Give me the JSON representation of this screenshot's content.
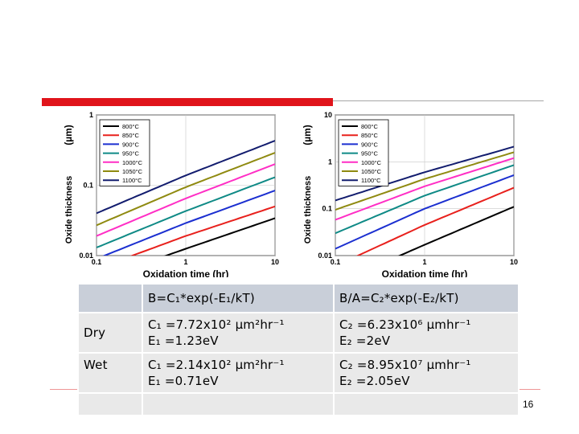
{
  "colors": {
    "accent_red": "#e0141b",
    "header_cell": "#c9cfd9",
    "body_cell": "#e9e9e9"
  },
  "page_number": "16",
  "chart_data": [
    {
      "type": "line",
      "ylabel": "(µm)",
      "ylabel_letters": "Oxide thickness",
      "xlabel": "Oxidation time (hr)",
      "xscale": "log",
      "yscale": "log",
      "xlim": [
        0.1,
        10
      ],
      "ylim": [
        0.01,
        1
      ],
      "xticks": [
        "0.1",
        "1",
        "10"
      ],
      "yticks": [
        "0.01",
        "0.1",
        "1"
      ],
      "legend_position": "top-left",
      "series": [
        {
          "name": "800°C",
          "color": "#000000",
          "x": [
            0.1,
            1,
            10
          ],
          "y": [
            0.0045,
            0.0125,
            0.034
          ]
        },
        {
          "name": "850°C",
          "color": "#e8201c",
          "x": [
            0.1,
            1,
            10
          ],
          "y": [
            0.0065,
            0.019,
            0.05
          ]
        },
        {
          "name": "900°C",
          "color": "#1b2fd0",
          "x": [
            0.1,
            1,
            10
          ],
          "y": [
            0.009,
            0.029,
            0.084
          ]
        },
        {
          "name": "950°C",
          "color": "#0f8a86",
          "x": [
            0.1,
            1,
            10
          ],
          "y": [
            0.013,
            0.043,
            0.13
          ]
        },
        {
          "name": "1000°C",
          "color": "#ff2ec5",
          "x": [
            0.1,
            1,
            10
          ],
          "y": [
            0.019,
            0.065,
            0.2
          ]
        },
        {
          "name": "1050°C",
          "color": "#8f8a10",
          "x": [
            0.1,
            1,
            10
          ],
          "y": [
            0.027,
            0.094,
            0.29
          ]
        },
        {
          "name": "1100°C",
          "color": "#121c6e",
          "x": [
            0.1,
            1,
            10
          ],
          "y": [
            0.04,
            0.138,
            0.43
          ]
        }
      ]
    },
    {
      "type": "line",
      "ylabel": "(µm)",
      "ylabel_letters": "Oxide thickness",
      "xlabel": "Oxidation time (hr)",
      "xscale": "log",
      "yscale": "log",
      "xlim": [
        0.1,
        10
      ],
      "ylim": [
        0.01,
        10
      ],
      "xticks": [
        "0.1",
        "1",
        "10"
      ],
      "yticks": [
        "0.01",
        "0.1",
        "1",
        "10"
      ],
      "legend_position": "top-left",
      "series": [
        {
          "name": "800°C",
          "color": "#000000",
          "x": [
            0.1,
            1,
            10
          ],
          "y": [
            0.0025,
            0.017,
            0.11
          ]
        },
        {
          "name": "850°C",
          "color": "#e8201c",
          "x": [
            0.1,
            1,
            10
          ],
          "y": [
            0.006,
            0.045,
            0.28
          ]
        },
        {
          "name": "900°C",
          "color": "#1b2fd0",
          "x": [
            0.1,
            1,
            10
          ],
          "y": [
            0.014,
            0.1,
            0.52
          ]
        },
        {
          "name": "950°C",
          "color": "#0f8a86",
          "x": [
            0.1,
            1,
            10
          ],
          "y": [
            0.03,
            0.19,
            0.85
          ]
        },
        {
          "name": "1000°C",
          "color": "#ff2ec5",
          "x": [
            0.1,
            1,
            10
          ],
          "y": [
            0.058,
            0.3,
            1.2
          ]
        },
        {
          "name": "1050°C",
          "color": "#8f8a10",
          "x": [
            0.1,
            1,
            10
          ],
          "y": [
            0.095,
            0.43,
            1.6
          ]
        },
        {
          "name": "1100°C",
          "color": "#121c6e",
          "x": [
            0.1,
            1,
            10
          ],
          "y": [
            0.15,
            0.6,
            2.1
          ]
        }
      ]
    }
  ],
  "table": {
    "header": {
      "blank": "",
      "col1": "B=C₁*exp(-E₁/kT)",
      "col2": "B/A=C₂*exp(-E₂/kT)"
    },
    "rows": [
      {
        "label": "Dry",
        "c1_line1": "C₁ =7.72x10² µm²hr⁻¹",
        "c1_line2": "E₁ =1.23eV",
        "c2_line1": "C₂ =6.23x10⁶ µmhr⁻¹",
        "c2_line2": "E₂ =2eV"
      },
      {
        "label": "Wet",
        "c1_line1": "C₁ =2.14x10² µm²hr⁻¹",
        "c1_line2": "E₁ =0.71eV",
        "c2_line1": "C₂ =8.95x10⁷ µmhr⁻¹",
        "c2_line2": "E₂ =2.05eV"
      },
      {
        "label": "",
        "c1_line1": "",
        "c1_line2": "",
        "c2_line1": "",
        "c2_line2": ""
      }
    ]
  }
}
